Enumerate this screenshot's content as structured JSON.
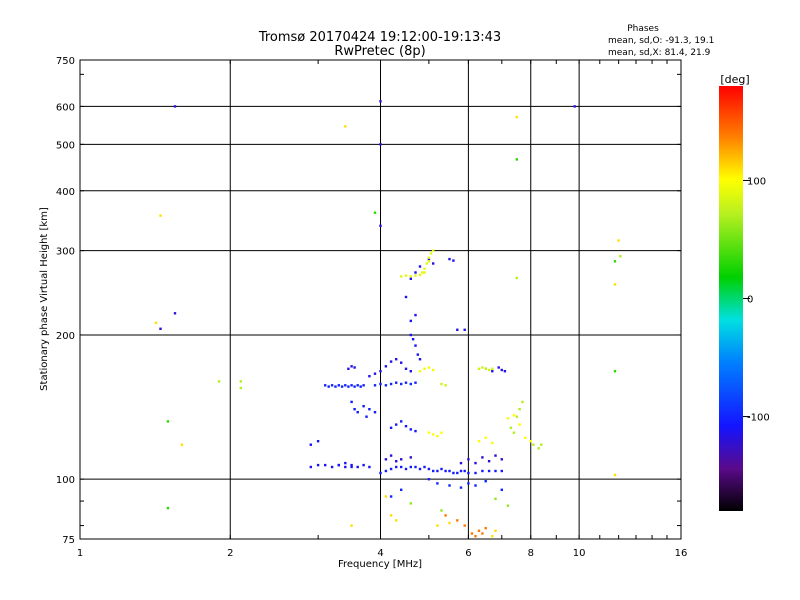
{
  "chart_data": {
    "type": "scatter",
    "title": "Tromsø 20170424 19:12:00-19:13:43",
    "subtitle": "RwPretec (8p)",
    "stats": {
      "heading": "Phases",
      "line_o": "mean, sd,O: -91.3, 19.1",
      "line_x": "mean, sd,X:  81.4, 21.9"
    },
    "xlabel": "Frequency [MHz]",
    "ylabel": "Stationary phase Virtual Height [km]",
    "x_scale": "log",
    "y_scale": "log",
    "xlim": [
      1,
      16
    ],
    "ylim": [
      75,
      750
    ],
    "x_ticks": [
      {
        "v": 1,
        "label": "1"
      },
      {
        "v": 2,
        "label": "2"
      },
      {
        "v": 4,
        "label": "4"
      },
      {
        "v": 6,
        "label": "6"
      },
      {
        "v": 8,
        "label": "8"
      },
      {
        "v": 10,
        "label": "10"
      },
      {
        "v": 16,
        "label": "16"
      }
    ],
    "y_ticks": [
      {
        "v": 75,
        "label": "75"
      },
      {
        "v": 100,
        "label": "100"
      },
      {
        "v": 200,
        "label": "200"
      },
      {
        "v": 300,
        "label": "300"
      },
      {
        "v": 400,
        "label": "400"
      },
      {
        "v": 500,
        "label": "500"
      },
      {
        "v": 600,
        "label": "600"
      },
      {
        "v": 750,
        "label": "750"
      }
    ],
    "grid": true,
    "colorbar": {
      "label": "[deg]",
      "range": [
        -180,
        180
      ],
      "ticks": [
        {
          "v": 100,
          "label": "100"
        },
        {
          "v": 0,
          "label": "0"
        },
        {
          "v": -100,
          "label": "-100"
        }
      ]
    },
    "point_groups": [
      {
        "name": "",
        "phase": -110,
        "points": [
          [
            2.9,
            118
          ],
          [
            3.0,
            120
          ],
          [
            2.9,
            106
          ],
          [
            3.0,
            107
          ],
          [
            3.1,
            107
          ],
          [
            3.2,
            106
          ],
          [
            3.3,
            107
          ],
          [
            3.4,
            108
          ],
          [
            3.5,
            106
          ]
        ]
      },
      {
        "name": "",
        "phase": -100,
        "points": [
          [
            3.1,
            157
          ],
          [
            3.15,
            156
          ],
          [
            3.2,
            157
          ],
          [
            3.25,
            156
          ],
          [
            3.3,
            157
          ],
          [
            3.35,
            156
          ],
          [
            3.4,
            157
          ],
          [
            3.45,
            156
          ],
          [
            3.5,
            157
          ],
          [
            3.55,
            156
          ],
          [
            3.6,
            157
          ],
          [
            3.65,
            156
          ],
          [
            3.7,
            157
          ]
        ]
      },
      {
        "name": "",
        "phase": -115,
        "points": [
          [
            3.45,
            170
          ],
          [
            3.5,
            172
          ],
          [
            3.55,
            171
          ],
          [
            3.8,
            164
          ],
          [
            3.9,
            166
          ],
          [
            4.0,
            168
          ],
          [
            4.1,
            172
          ],
          [
            4.2,
            176
          ],
          [
            4.3,
            178
          ],
          [
            4.4,
            175
          ],
          [
            4.5,
            170
          ],
          [
            4.6,
            168
          ]
        ]
      },
      {
        "name": "",
        "phase": -100,
        "points": [
          [
            3.9,
            157
          ],
          [
            4.0,
            158
          ],
          [
            4.1,
            157
          ],
          [
            4.2,
            158
          ],
          [
            4.3,
            159
          ],
          [
            4.4,
            158
          ],
          [
            4.5,
            159
          ],
          [
            4.6,
            158
          ],
          [
            4.7,
            159
          ]
        ]
      },
      {
        "name": "",
        "phase": -105,
        "points": [
          [
            3.5,
            145
          ],
          [
            3.55,
            140
          ],
          [
            3.6,
            138
          ],
          [
            3.7,
            142
          ],
          [
            3.75,
            135
          ],
          [
            3.8,
            140
          ],
          [
            3.9,
            138
          ],
          [
            4.2,
            128
          ],
          [
            4.3,
            130
          ],
          [
            4.4,
            132
          ],
          [
            4.5,
            129
          ],
          [
            4.6,
            127
          ],
          [
            4.7,
            126
          ]
        ]
      },
      {
        "name": "",
        "phase": -110,
        "points": [
          [
            3.3,
            107
          ],
          [
            3.4,
            106
          ],
          [
            3.5,
            107
          ],
          [
            3.6,
            106
          ],
          [
            3.7,
            107
          ],
          [
            3.8,
            106
          ]
        ]
      },
      {
        "name": "",
        "phase": -105,
        "points": [
          [
            4.0,
            103
          ],
          [
            4.1,
            104
          ],
          [
            4.2,
            105
          ],
          [
            4.3,
            106
          ],
          [
            4.4,
            106
          ],
          [
            4.5,
            105
          ],
          [
            4.6,
            106
          ],
          [
            4.7,
            106
          ],
          [
            4.8,
            105
          ],
          [
            4.9,
            106
          ],
          [
            5.0,
            105
          ],
          [
            5.1,
            104
          ],
          [
            5.2,
            104
          ],
          [
            5.3,
            105
          ],
          [
            5.4,
            104
          ],
          [
            5.5,
            104
          ],
          [
            5.6,
            103
          ],
          [
            5.7,
            103
          ],
          [
            5.8,
            104
          ],
          [
            5.9,
            104
          ],
          [
            6.0,
            103
          ],
          [
            6.2,
            103
          ],
          [
            6.4,
            104
          ],
          [
            6.6,
            104
          ],
          [
            6.8,
            104
          ],
          [
            7.0,
            104
          ]
        ]
      },
      {
        "name": "",
        "phase": -120,
        "points": [
          [
            4.1,
            110
          ],
          [
            4.2,
            112
          ],
          [
            4.3,
            109
          ],
          [
            4.4,
            110
          ],
          [
            4.6,
            111
          ],
          [
            5.8,
            108
          ],
          [
            6.0,
            110
          ],
          [
            6.2,
            108
          ],
          [
            6.4,
            111
          ],
          [
            6.6,
            109
          ],
          [
            6.8,
            112
          ],
          [
            7.0,
            110
          ]
        ]
      },
      {
        "name": "",
        "phase": -110,
        "points": [
          [
            4.6,
            200
          ],
          [
            4.65,
            196
          ],
          [
            4.7,
            190
          ],
          [
            4.75,
            182
          ],
          [
            4.8,
            178
          ],
          [
            4.6,
            214
          ],
          [
            4.7,
            220
          ],
          [
            4.5,
            240
          ],
          [
            4.6,
            262
          ],
          [
            4.7,
            270
          ],
          [
            4.8,
            278
          ]
        ]
      },
      {
        "name": "",
        "phase": -115,
        "points": [
          [
            5.0,
            288
          ],
          [
            5.1,
            282
          ],
          [
            5.5,
            288
          ],
          [
            5.6,
            286
          ],
          [
            5.7,
            205
          ],
          [
            5.9,
            205
          ],
          [
            6.5,
            170
          ],
          [
            6.7,
            168
          ],
          [
            6.9,
            171
          ],
          [
            7.0,
            169
          ],
          [
            7.1,
            168
          ]
        ]
      },
      {
        "name": "",
        "phase": 90,
        "points": [
          [
            4.4,
            265
          ],
          [
            4.5,
            266
          ],
          [
            4.6,
            265
          ],
          [
            4.7,
            266
          ],
          [
            4.8,
            267
          ],
          [
            4.85,
            270
          ],
          [
            4.9,
            275
          ],
          [
            4.95,
            282
          ],
          [
            5.0,
            290
          ],
          [
            5.05,
            296
          ],
          [
            5.1,
            300
          ],
          [
            5.0,
            285
          ],
          [
            4.9,
            270
          ]
        ]
      },
      {
        "name": "",
        "phase": 95,
        "points": [
          [
            4.8,
            168
          ],
          [
            4.9,
            170
          ],
          [
            5.0,
            171
          ],
          [
            5.1,
            169
          ]
        ]
      },
      {
        "name": "",
        "phase": 80,
        "points": [
          [
            6.3,
            170
          ],
          [
            6.4,
            171
          ],
          [
            6.5,
            170
          ],
          [
            6.6,
            169
          ],
          [
            6.7,
            170
          ],
          [
            5.3,
            158
          ],
          [
            5.4,
            157
          ]
        ]
      },
      {
        "name": "",
        "phase": 100,
        "points": [
          [
            5.0,
            125
          ],
          [
            5.1,
            124
          ],
          [
            5.2,
            123
          ],
          [
            5.3,
            125
          ],
          [
            6.3,
            120
          ],
          [
            6.5,
            122
          ],
          [
            6.7,
            119
          ],
          [
            7.2,
            134
          ],
          [
            7.4,
            136
          ],
          [
            7.6,
            130
          ],
          [
            7.8,
            122
          ],
          [
            8.0,
            120
          ]
        ]
      },
      {
        "name": "",
        "phase": 70,
        "points": [
          [
            7.5,
            135
          ],
          [
            7.6,
            140
          ],
          [
            7.7,
            145
          ],
          [
            8.1,
            118
          ],
          [
            8.3,
            116
          ],
          [
            8.4,
            118
          ],
          [
            7.4,
            125
          ],
          [
            7.3,
            128
          ]
        ]
      },
      {
        "name": "",
        "phase": 140,
        "points": [
          [
            6.3,
            78
          ],
          [
            6.4,
            77
          ],
          [
            6.5,
            79
          ],
          [
            6.2,
            76
          ],
          [
            6.1,
            77
          ],
          [
            5.9,
            80
          ],
          [
            5.7,
            82
          ],
          [
            5.4,
            84
          ]
        ]
      },
      {
        "name": "",
        "phase": 110,
        "points": [
          [
            5.2,
            80
          ],
          [
            5.5,
            81
          ],
          [
            4.2,
            84
          ],
          [
            4.3,
            82
          ],
          [
            3.5,
            80
          ],
          [
            6.7,
            76
          ],
          [
            6.8,
            78
          ],
          [
            4.1,
            92
          ]
        ]
      },
      {
        "name": "",
        "phase": -100,
        "points": [
          [
            5.0,
            100
          ],
          [
            5.2,
            98
          ],
          [
            5.5,
            97
          ],
          [
            5.8,
            96
          ],
          [
            6.0,
            98
          ],
          [
            6.2,
            97
          ],
          [
            6.5,
            99
          ],
          [
            7.0,
            95
          ],
          [
            4.4,
            95
          ],
          [
            4.2,
            92
          ]
        ]
      },
      {
        "name": "",
        "phase": 60,
        "points": [
          [
            4.6,
            89
          ],
          [
            5.3,
            86
          ],
          [
            6.8,
            91
          ],
          [
            7.2,
            88
          ]
        ]
      },
      {
        "name": "",
        "phase": -120,
        "points": [
          [
            1.55,
            600
          ],
          [
            4.0,
            615
          ],
          [
            4.0,
            500
          ],
          [
            9.8,
            600
          ],
          [
            1.55,
            222
          ],
          [
            1.45,
            206
          ],
          [
            4.0,
            338
          ]
        ]
      },
      {
        "name": "",
        "phase": 110,
        "points": [
          [
            3.4,
            545
          ],
          [
            7.5,
            570
          ],
          [
            1.45,
            355
          ],
          [
            12.0,
            315
          ],
          [
            11.8,
            255
          ],
          [
            1.42,
            212
          ],
          [
            1.6,
            118
          ],
          [
            11.8,
            102
          ]
        ]
      },
      {
        "name": "",
        "phase": 30,
        "points": [
          [
            7.5,
            465
          ],
          [
            3.9,
            360
          ],
          [
            11.8,
            285
          ],
          [
            11.8,
            168
          ],
          [
            1.5,
            132
          ],
          [
            1.5,
            87
          ]
        ]
      },
      {
        "name": "",
        "phase": 70,
        "points": [
          [
            1.9,
            160
          ],
          [
            2.1,
            160
          ],
          [
            2.1,
            155
          ],
          [
            7.5,
            263
          ],
          [
            12.1,
            292
          ]
        ]
      }
    ]
  }
}
